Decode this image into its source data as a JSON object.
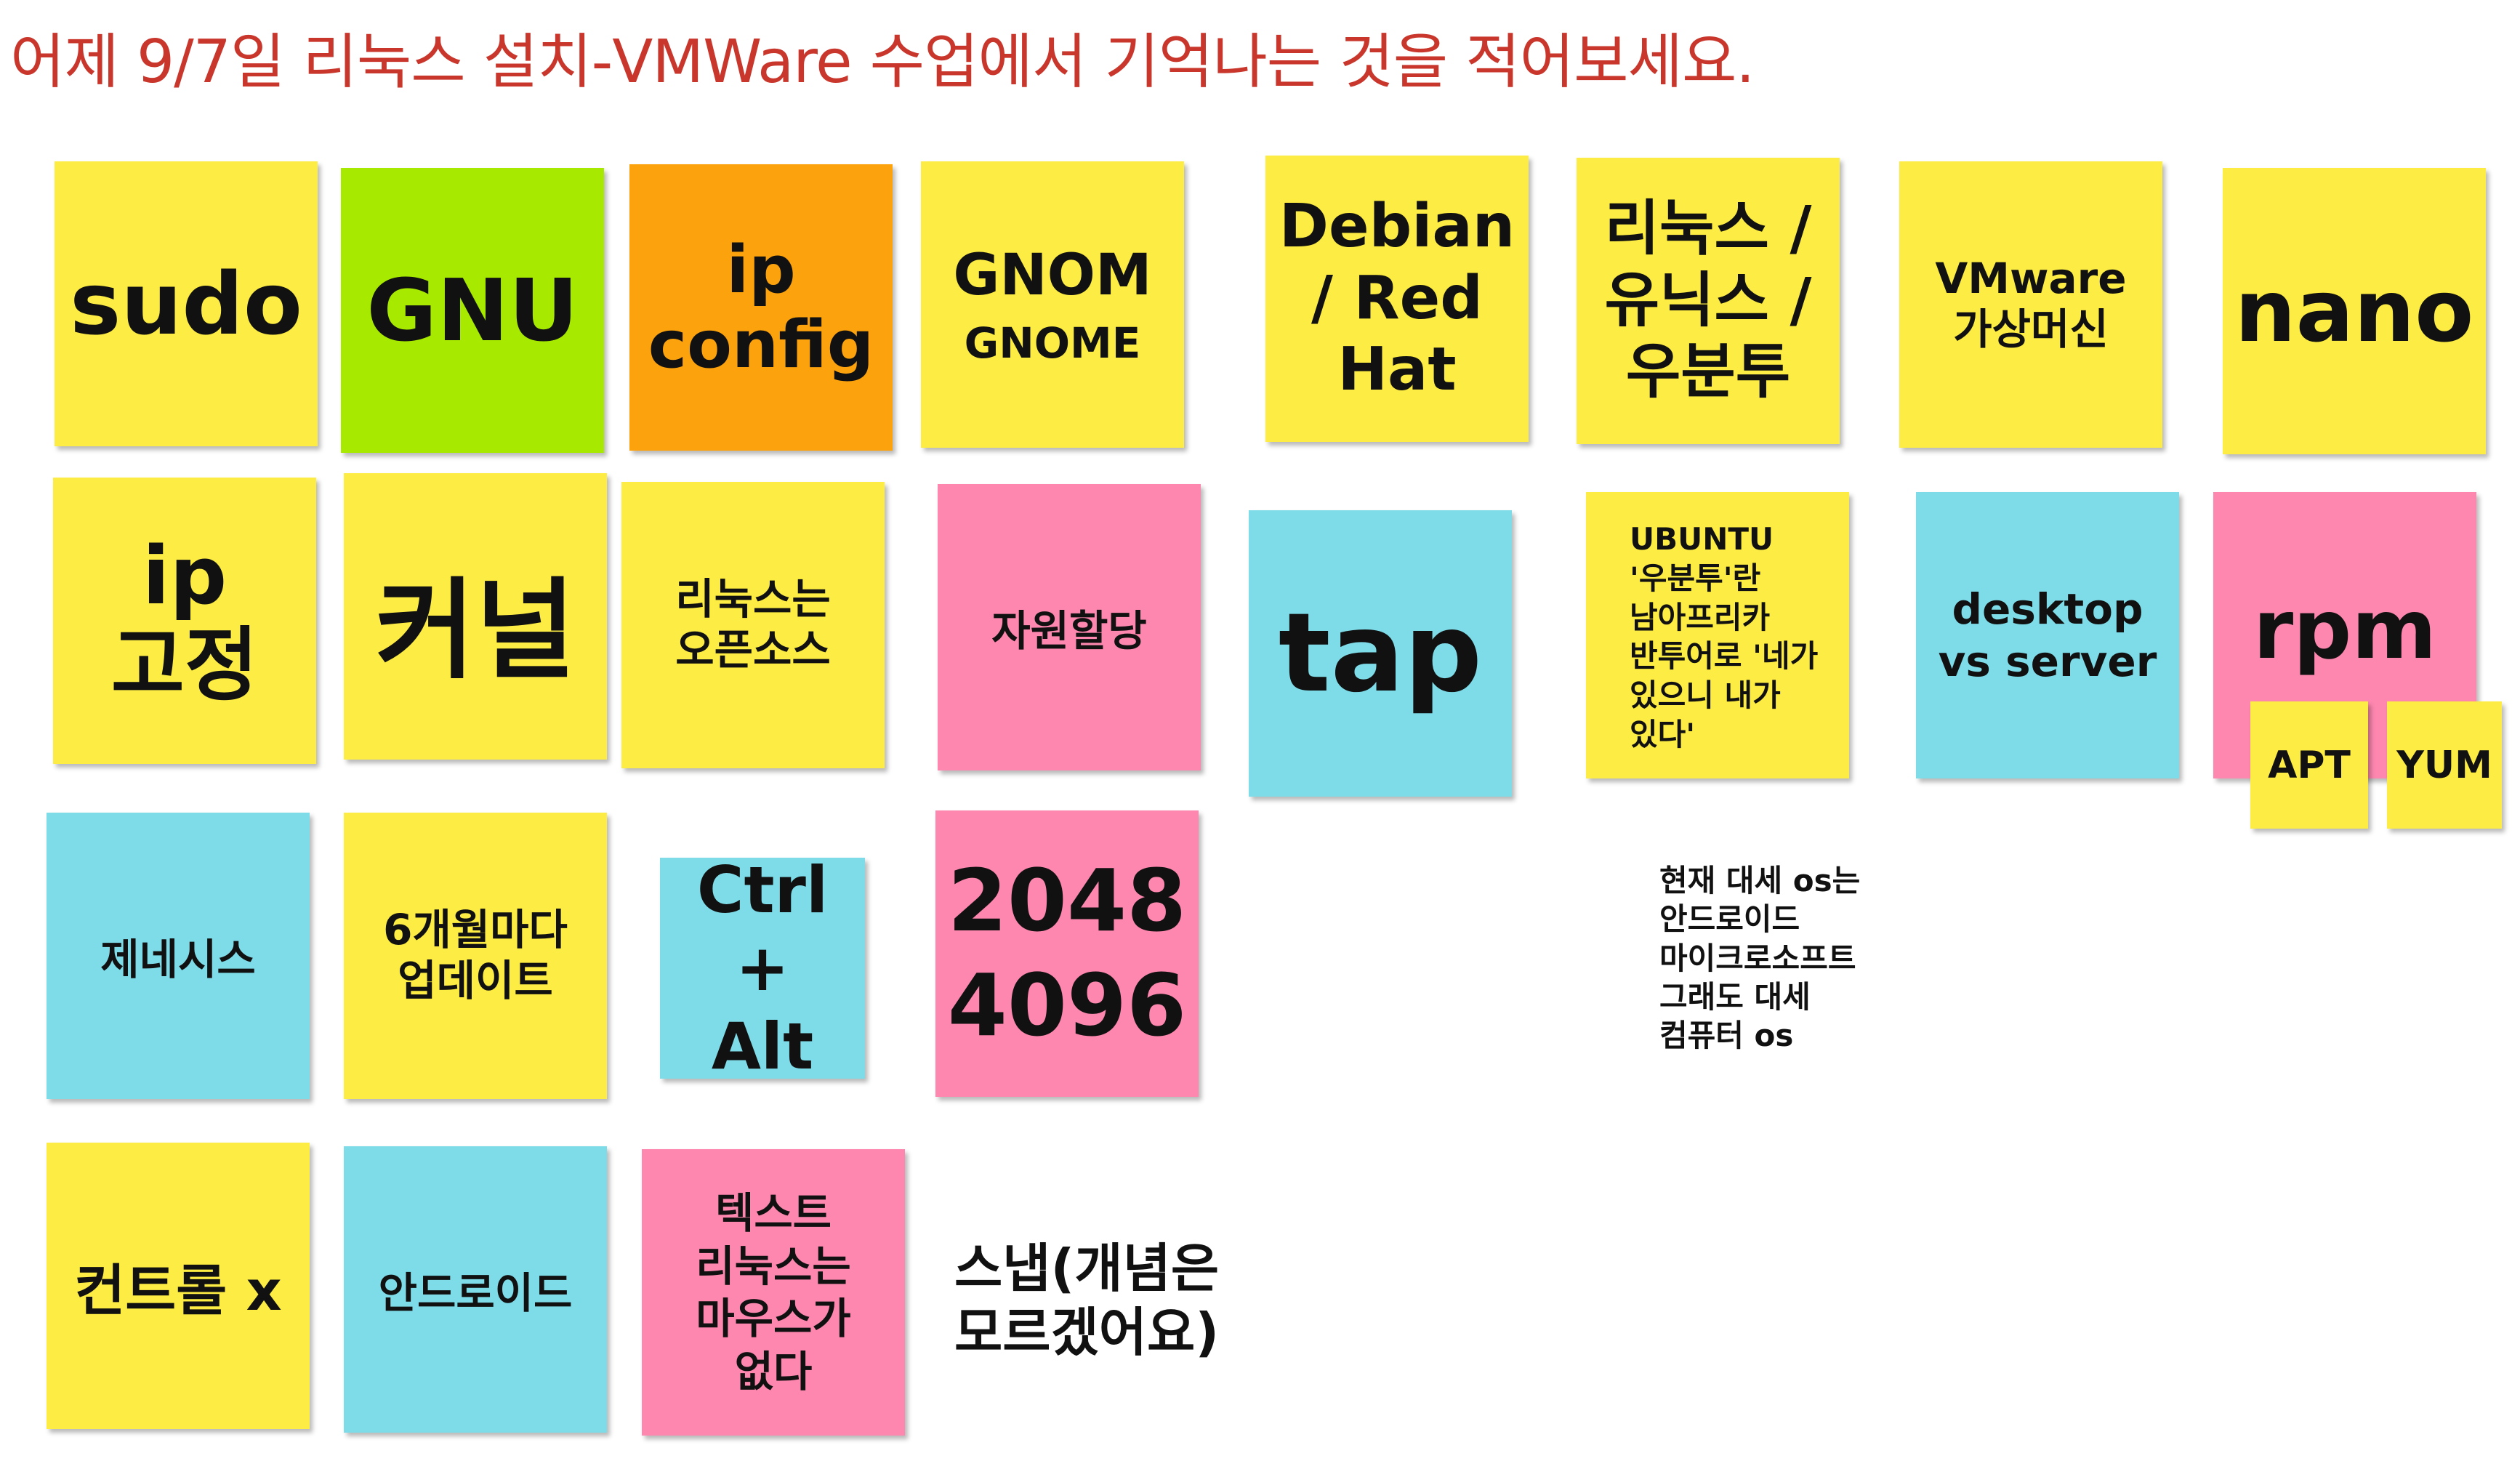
{
  "title": "어제 9/7일 리눅스 설치-VMWare 수업에서 기억나는 것을 적어보세요.",
  "colors": {
    "title": "#c9372c",
    "yellow": "#fcec43",
    "green": "#a7ea00",
    "orange": "#fca20c",
    "pink": "#fe87b0",
    "cyan": "#7edbe8"
  },
  "notes": {
    "sudo": [
      "sudo"
    ],
    "gnu": [
      "GNU"
    ],
    "ipconfig": [
      "ip",
      "config"
    ],
    "gnome": [
      "GNOM",
      "GNOME"
    ],
    "debian": [
      "Debian",
      "/ Red",
      "Hat"
    ],
    "linux_unix_ubuntu": [
      "리눅스 /",
      "유닉스 /",
      "우분투"
    ],
    "vmware": [
      "VMware",
      "가상머신"
    ],
    "nano": [
      "nano"
    ],
    "ip_static": [
      "ip",
      "고정"
    ],
    "kernel": [
      "커널"
    ],
    "opensource": [
      "리눅스는",
      "오픈소스"
    ],
    "resource": [
      "자원할당"
    ],
    "tap": [
      "tap"
    ],
    "ubuntu_meaning": [
      "UBUNTU",
      "'우분투'란",
      "남아프리카",
      "반투어로 '네가",
      "있으니 내가",
      "있다'"
    ],
    "desktop_server": [
      "desktop",
      "vs server"
    ],
    "rpm": [
      "rpm"
    ],
    "apt": [
      "APT"
    ],
    "yum": [
      "YUM"
    ],
    "genesis": [
      "제네시스"
    ],
    "update": [
      "6개월마다",
      "업데이트"
    ],
    "ctrl_alt": [
      "Ctrl +",
      "Alt"
    ],
    "numbers": [
      "2048",
      "4096"
    ],
    "control_x": [
      "컨트롤 x"
    ],
    "android": [
      "안드로이드"
    ],
    "text_linux": [
      "텍스트",
      "리눅스는",
      "마우스가",
      "없다"
    ]
  },
  "plain_texts": {
    "current_os": [
      "현재 대세 os는",
      "안드로이드",
      "마이크로소프트",
      "그래도 대세",
      "컴퓨터 os"
    ],
    "snap": [
      "스냅(개념은",
      "모르겠어요)"
    ]
  }
}
